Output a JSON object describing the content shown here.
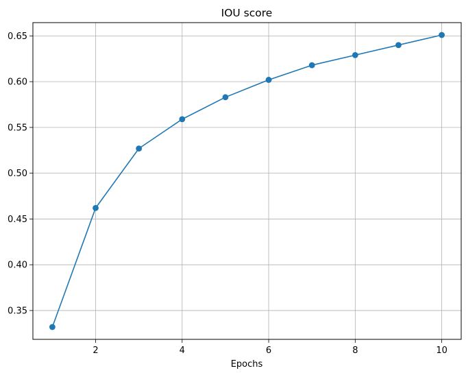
{
  "chart_data": {
    "type": "line",
    "title": "IOU score",
    "xlabel": "Epochs",
    "ylabel": "",
    "x": [
      1,
      2,
      3,
      4,
      5,
      6,
      7,
      8,
      9,
      10
    ],
    "series": [
      {
        "values": [
          0.332,
          0.462,
          0.527,
          0.559,
          0.583,
          0.602,
          0.618,
          0.629,
          0.64,
          0.651
        ],
        "color": "#1f77b4",
        "marker": "circle"
      }
    ],
    "xlim": [
      0.55,
      10.45
    ],
    "ylim": [
      0.3185,
      0.6645
    ],
    "xticks": [
      2,
      4,
      6,
      8,
      10
    ],
    "xtick_labels": [
      "2",
      "4",
      "6",
      "8",
      "10"
    ],
    "yticks": [
      0.35,
      0.4,
      0.45,
      0.5,
      0.55,
      0.6,
      0.65
    ],
    "ytick_labels": [
      "0.35",
      "0.40",
      "0.45",
      "0.50",
      "0.55",
      "0.60",
      "0.65"
    ],
    "grid": true,
    "legend": "none"
  }
}
